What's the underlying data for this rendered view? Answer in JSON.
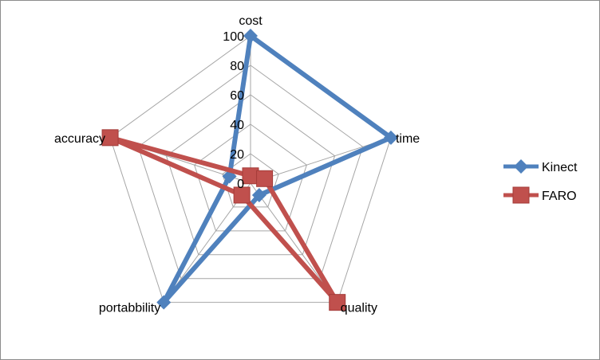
{
  "chart_data": {
    "type": "radar",
    "title": "",
    "axes": [
      "cost",
      "time",
      "quality",
      "portabbility",
      "accuracy"
    ],
    "rlim": [
      0,
      100
    ],
    "ticks": [
      0,
      20,
      40,
      60,
      80,
      100
    ],
    "tick_labels": [
      "0",
      "20",
      "40",
      "60",
      "80",
      "100"
    ],
    "grid": true,
    "legend_position": "right",
    "series": [
      {
        "name": "Kinect",
        "values": [
          100,
          100,
          10,
          100,
          15
        ],
        "color": "#4f81bd",
        "marker": "diamond"
      },
      {
        "name": "FARO",
        "values": [
          5,
          10,
          100,
          10,
          100
        ],
        "color": "#c0504d",
        "marker": "square"
      }
    ]
  }
}
